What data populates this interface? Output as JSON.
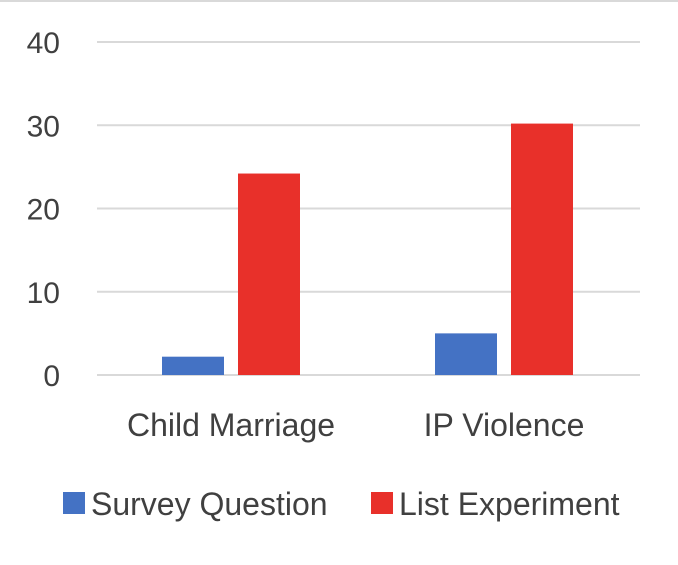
{
  "chart_data": {
    "type": "bar",
    "categories": [
      "Child Marriage",
      "IP Violence"
    ],
    "series": [
      {
        "name": "Survey Question",
        "values": [
          2.2,
          5.0
        ],
        "color": "#4472C4"
      },
      {
        "name": "List Experiment",
        "values": [
          24.2,
          30.2
        ],
        "color": "#E8302A"
      }
    ],
    "title": "",
    "xlabel": "",
    "ylabel": "",
    "ylim": [
      0,
      40
    ],
    "yticks": [
      0,
      10,
      20,
      30,
      40
    ],
    "grid": true,
    "legend_position": "bottom",
    "gridline_color": "#d9d9d9",
    "text_color": "#404040"
  }
}
